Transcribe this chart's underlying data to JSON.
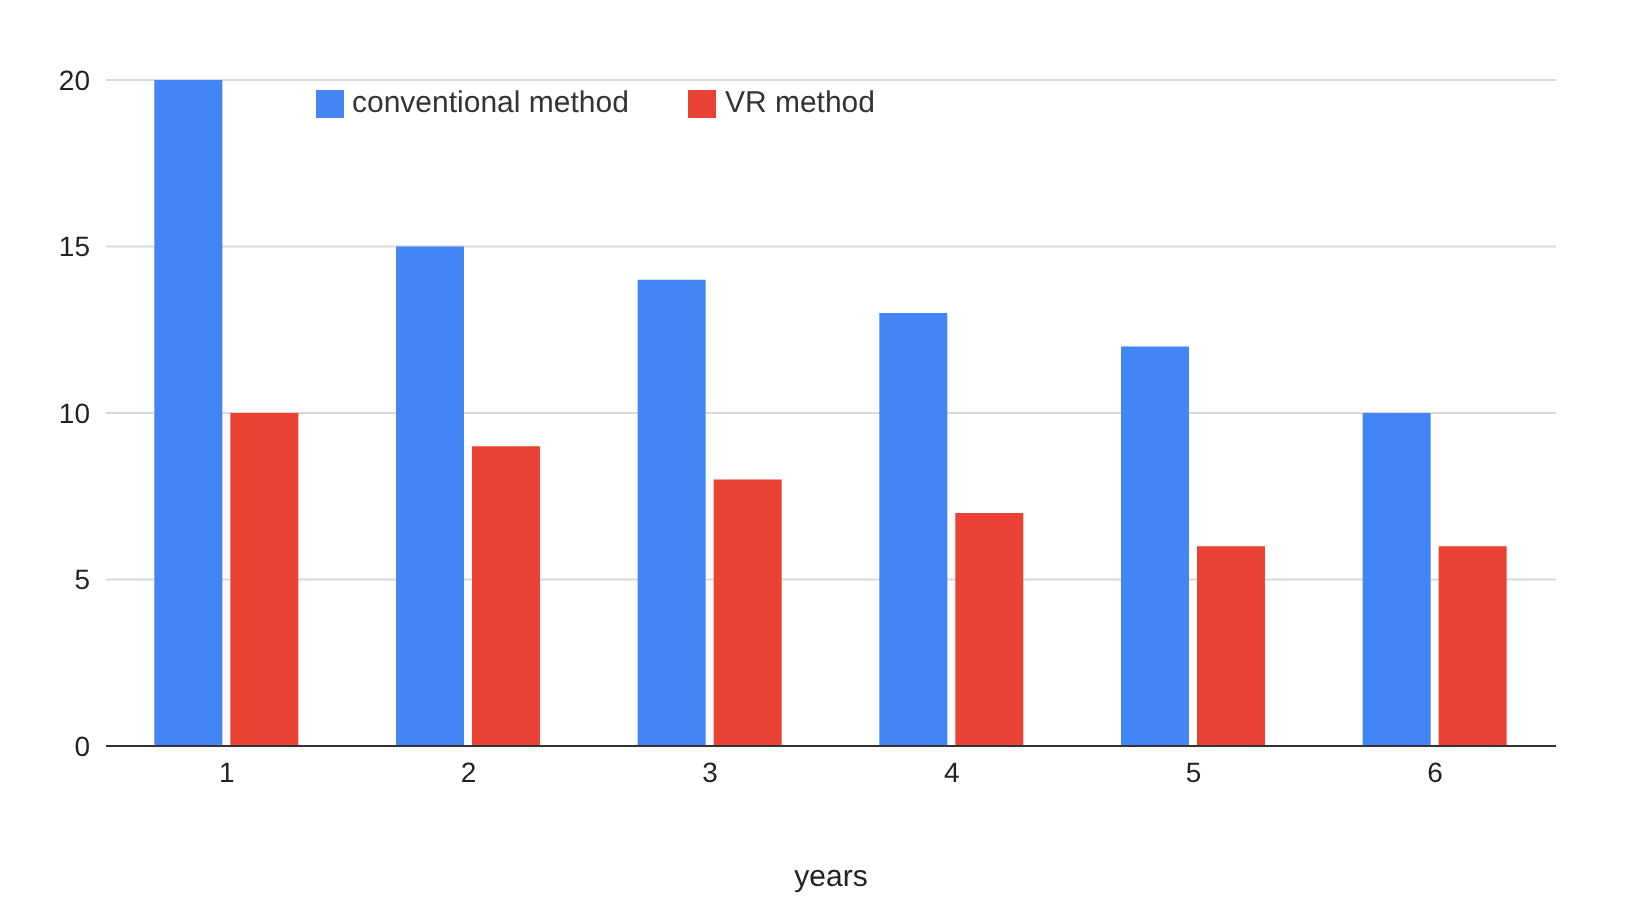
{
  "chart_data": {
    "type": "bar",
    "xlabel": "years",
    "categories": [
      "1",
      "2",
      "3",
      "4",
      "5",
      "6"
    ],
    "series": [
      {
        "name": "conventional method",
        "color": "#4285f4",
        "values": [
          20,
          15,
          14,
          13,
          12,
          10
        ]
      },
      {
        "name": "VR method",
        "color": "#ea4335",
        "values": [
          10,
          9,
          8,
          7,
          6,
          6
        ]
      }
    ],
    "ylim": [
      0,
      20
    ],
    "yticks": [
      0,
      5,
      10,
      15,
      20
    ],
    "grid": "y",
    "legend": "top left"
  }
}
